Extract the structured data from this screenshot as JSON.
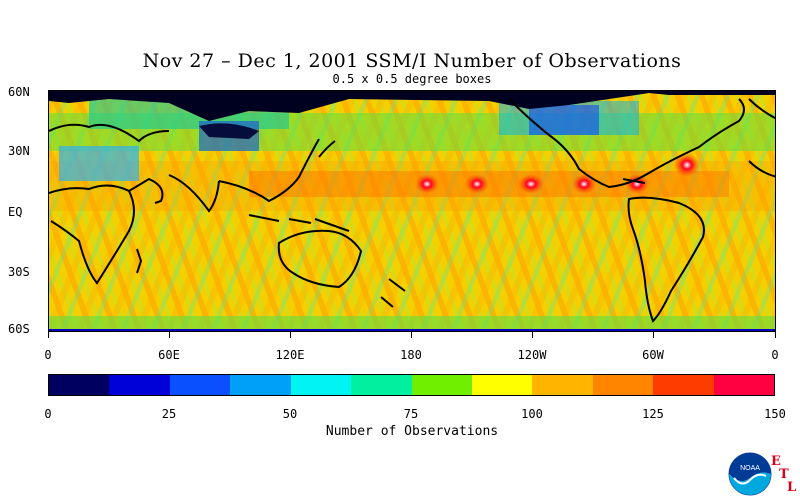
{
  "title": "Nov 27 – Dec 1, 2001 SSM/I Number of Observations",
  "subtitle": "0.5 x 0.5 degree boxes",
  "lat_labels": [
    "60N",
    "30N",
    "EQ",
    "30S",
    "60S"
  ],
  "lon_labels": [
    "0",
    "60E",
    "120E",
    "180",
    "120W",
    "60W",
    "0"
  ],
  "colorbar": {
    "colors": [
      "#000060",
      "#0000d8",
      "#0a50ff",
      "#00a0f8",
      "#00f4f4",
      "#00f0a0",
      "#70f000",
      "#ffff00",
      "#ffb400",
      "#ff8400",
      "#ff3c00",
      "#ff0040"
    ],
    "tick_labels": [
      "0",
      "25",
      "50",
      "75",
      "100",
      "125",
      "150"
    ],
    "title": "Number of Observations",
    "range": [
      0,
      150
    ]
  },
  "logo": {
    "name": "noaa-logo",
    "text": "NOAA",
    "letters": [
      "E",
      "T",
      "L"
    ]
  },
  "colors": {
    "land_outline": "#000000",
    "high_lat_mask": "#000000",
    "band_max": "#ff0020"
  }
}
